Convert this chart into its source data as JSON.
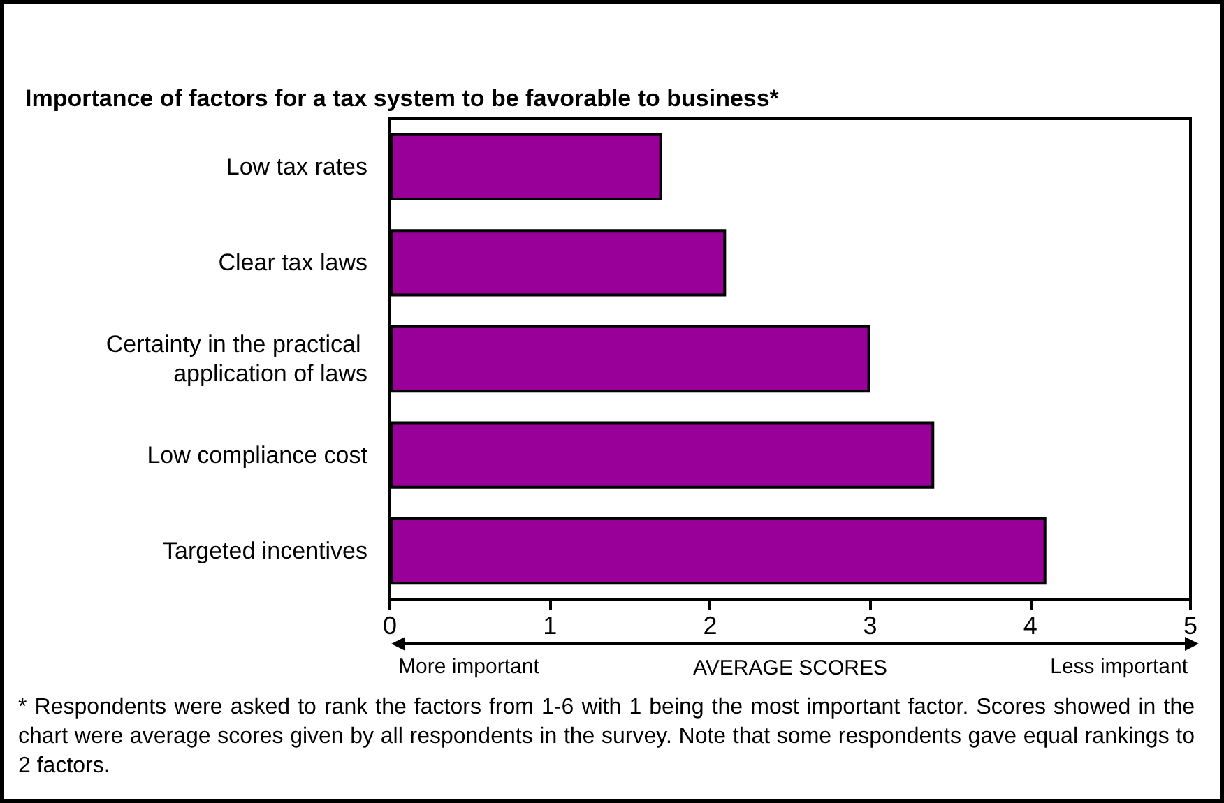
{
  "chart_data": {
    "type": "bar",
    "orientation": "horizontal",
    "title": "Importance of factors for a tax system to be favorable to business*",
    "categories": [
      "Low tax rates",
      "Clear tax laws",
      "Certainty in the practical application of laws",
      "Low compliance cost",
      "Targeted incentives"
    ],
    "values": [
      1.7,
      2.1,
      3.0,
      3.4,
      4.1
    ],
    "color": "#990099",
    "xlim": [
      0,
      5
    ],
    "xticks": [
      0,
      1,
      2,
      3,
      4,
      5
    ],
    "grid": false,
    "xlabel": "AVERAGE SCORES",
    "annotations": [
      "More important",
      "Less important",
      "* Respondents were asked to rank the factors from 1-6 with 1 being the most important factor.  Scores showed in the chart were average scores given by all respondents in the survey. Note that some respondents gave equal rankings to 2 factors."
    ]
  }
}
